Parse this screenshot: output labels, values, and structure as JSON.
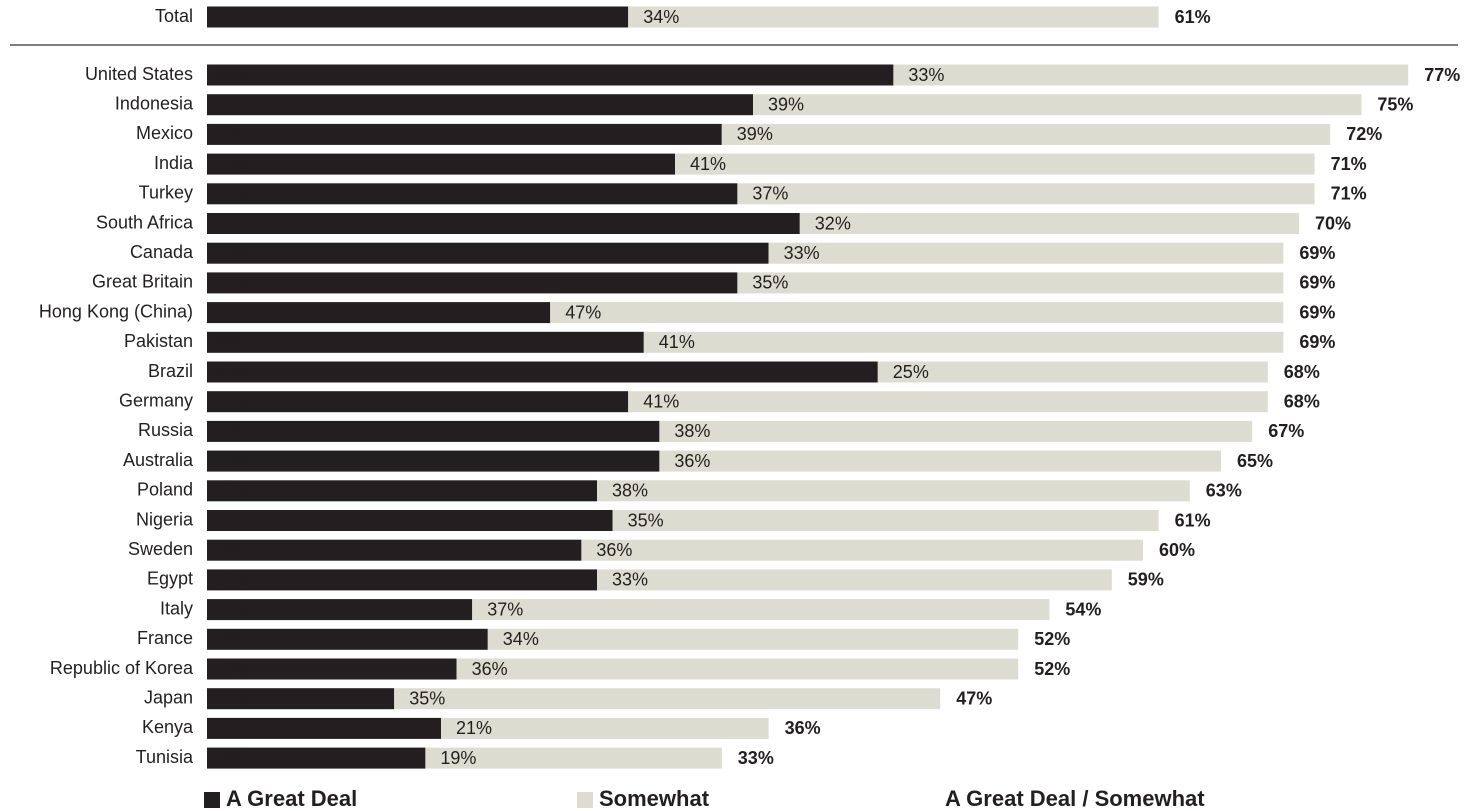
{
  "chart_data": {
    "type": "stacked-bar",
    "categories": [
      "Total",
      "United States",
      "Indonesia",
      "Mexico",
      "India",
      "Turkey",
      "South Africa",
      "Canada",
      "Great Britain",
      "Hong Kong (China)",
      "Pakistan",
      "Brazil",
      "Germany",
      "Russia",
      "Australia",
      "Poland",
      "Nigeria",
      "Sweden",
      "Egypt",
      "Italy",
      "France",
      "Republic of Korea",
      "Japan",
      "Kenya",
      "Tunisia"
    ],
    "series": [
      {
        "name": "A Great Deal",
        "color": "#231f20",
        "values": [
          27,
          44,
          35,
          33,
          30,
          34,
          38,
          36,
          34,
          22,
          28,
          43,
          27,
          29,
          29,
          25,
          26,
          24,
          25,
          17,
          18,
          16,
          12,
          15,
          14
        ],
        "value_labels": [
          "27%",
          "44%",
          "35%",
          "33%",
          "30%",
          "34%",
          "38%",
          "36%",
          "34%",
          "22%",
          "28%",
          "43%",
          "27%",
          "29%",
          "29%",
          "25%",
          "26%",
          "24%",
          "25%",
          "17%",
          "18%",
          "16%",
          "12%",
          "15%",
          "14%"
        ]
      },
      {
        "name": "Somewhat",
        "color": "#dddcd0",
        "values": [
          34,
          33,
          39,
          39,
          41,
          37,
          32,
          33,
          35,
          47,
          41,
          25,
          41,
          38,
          36,
          38,
          35,
          36,
          33,
          37,
          34,
          36,
          35,
          21,
          19
        ],
        "value_labels": [
          "34%",
          "33%",
          "39%",
          "39%",
          "41%",
          "37%",
          "32%",
          "33%",
          "35%",
          "47%",
          "41%",
          "25%",
          "41%",
          "38%",
          "36%",
          "38%",
          "35%",
          "36%",
          "33%",
          "37%",
          "34%",
          "36%",
          "35%",
          "21%",
          "19%"
        ]
      }
    ],
    "net": {
      "name": "A Great Deal / Somewhat",
      "values": [
        61,
        77,
        75,
        72,
        71,
        71,
        70,
        69,
        69,
        69,
        69,
        68,
        68,
        67,
        65,
        63,
        61,
        60,
        59,
        54,
        52,
        52,
        47,
        36,
        33
      ],
      "value_labels": [
        "61%",
        "77%",
        "75%",
        "72%",
        "71%",
        "71%",
        "70%",
        "69%",
        "69%",
        "69%",
        "69%",
        "68%",
        "68%",
        "67%",
        "65%",
        "63%",
        "61%",
        "60%",
        "59%",
        "54%",
        "52%",
        "52%",
        "47%",
        "36%",
        "33%"
      ]
    }
  }
}
